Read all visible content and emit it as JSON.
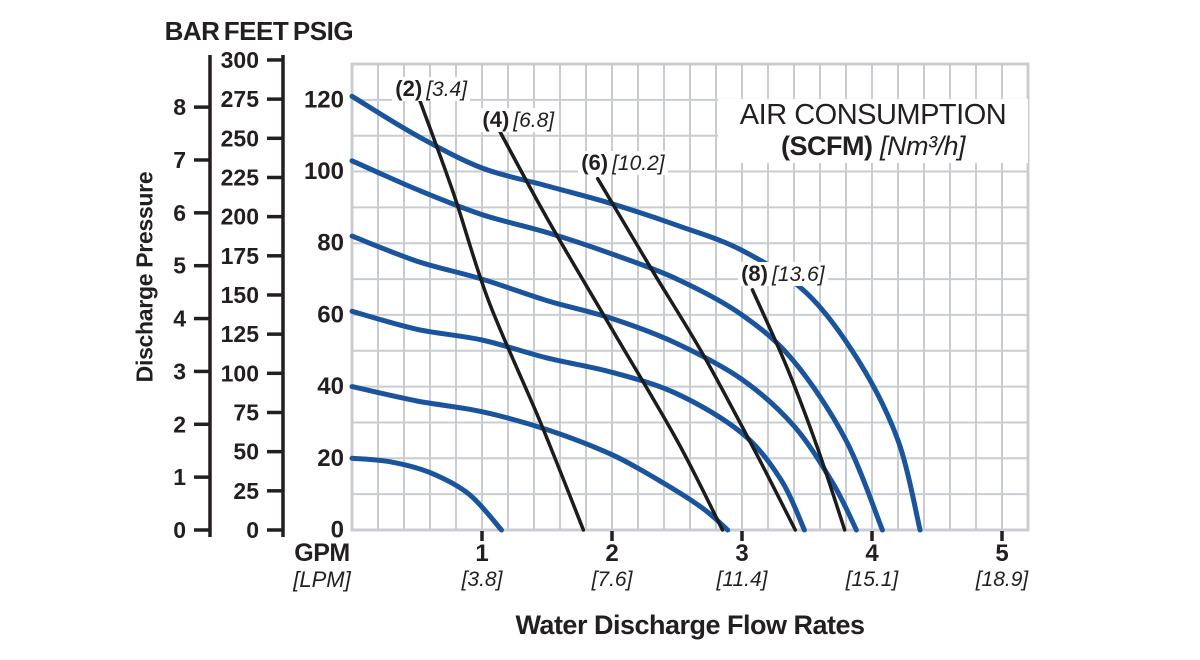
{
  "chart_data": {
    "type": "line",
    "title": {
      "line1": "AIR CONSUMPTION",
      "line2_bold": "(SCFM)",
      "line2_italic": "[Nm³/h]"
    },
    "xlabel": "Water Discharge Flow Rates",
    "ylabel": "Discharge Pressure",
    "colors": {
      "pump_curve": "#1a549c",
      "air_curve": "#1c1c1c",
      "grid": "#c9cdd2",
      "axis": "#231f20"
    },
    "x_axis": {
      "unit_primary": "GPM",
      "unit_secondary": "[LPM]",
      "xlim": [
        0,
        5.2
      ],
      "ticks": [
        {
          "gpm": "1",
          "lpm": "[3.8]"
        },
        {
          "gpm": "2",
          "lpm": "[7.6]"
        },
        {
          "gpm": "3",
          "lpm": "[11.4]"
        },
        {
          "gpm": "4",
          "lpm": "[15.1]"
        },
        {
          "gpm": "5",
          "lpm": "[18.9]"
        }
      ]
    },
    "y_axes": [
      {
        "name": "BAR",
        "values": [
          8,
          7,
          6,
          5,
          4,
          3,
          2,
          1,
          0
        ]
      },
      {
        "name": "FEET",
        "values": [
          300,
          275,
          250,
          225,
          200,
          175,
          150,
          125,
          100,
          75,
          50,
          25,
          0
        ]
      },
      {
        "name": "PSIG",
        "values": [
          120,
          100,
          80,
          60,
          40,
          20,
          0
        ]
      }
    ],
    "ylim_psig": [
      0,
      130
    ],
    "grid": {
      "x_step_gpm": 0.2,
      "y_step_psig": 10
    },
    "pump_curves": {
      "series": [
        {
          "name": "pump-curve-1",
          "points": [
            [
              0,
              121
            ],
            [
              0.5,
              110
            ],
            [
              1,
              101
            ],
            [
              1.5,
              96
            ],
            [
              2,
              91
            ],
            [
              2.5,
              85
            ],
            [
              3,
              78
            ],
            [
              3.5,
              66
            ],
            [
              3.9,
              47
            ],
            [
              4.2,
              25
            ],
            [
              4.37,
              0
            ]
          ]
        },
        {
          "name": "pump-curve-2",
          "points": [
            [
              0,
              103
            ],
            [
              0.5,
              95
            ],
            [
              1,
              88
            ],
            [
              1.5,
              83
            ],
            [
              2,
              77
            ],
            [
              2.5,
              70
            ],
            [
              3,
              60
            ],
            [
              3.4,
              47
            ],
            [
              3.8,
              25
            ],
            [
              4.08,
              0
            ]
          ]
        },
        {
          "name": "pump-curve-3",
          "points": [
            [
              0,
              82
            ],
            [
              0.5,
              75
            ],
            [
              1,
              70
            ],
            [
              1.5,
              64
            ],
            [
              2,
              59
            ],
            [
              2.5,
              52
            ],
            [
              3,
              42
            ],
            [
              3.4,
              29
            ],
            [
              3.7,
              13
            ],
            [
              3.88,
              0
            ]
          ]
        },
        {
          "name": "pump-curve-4",
          "points": [
            [
              0,
              61
            ],
            [
              0.5,
              56
            ],
            [
              1,
              53
            ],
            [
              1.5,
              48
            ],
            [
              2,
              44
            ],
            [
              2.5,
              38
            ],
            [
              3,
              27
            ],
            [
              3.3,
              14
            ],
            [
              3.48,
              0
            ]
          ]
        },
        {
          "name": "pump-curve-5",
          "points": [
            [
              0,
              40
            ],
            [
              0.5,
              36
            ],
            [
              1,
              33
            ],
            [
              1.5,
              28
            ],
            [
              2,
              21
            ],
            [
              2.4,
              13
            ],
            [
              2.7,
              6
            ],
            [
              2.89,
              0
            ]
          ]
        },
        {
          "name": "pump-curve-6",
          "points": [
            [
              0,
              20
            ],
            [
              0.3,
              19
            ],
            [
              0.6,
              16
            ],
            [
              0.9,
              10
            ],
            [
              1.15,
              0
            ]
          ]
        }
      ]
    },
    "air_consumption_curves": {
      "series": [
        {
          "label_bold": "(2)",
          "label_italic": "[3.4]",
          "label_anchor": {
            "gpm": 0.31,
            "psig": 123
          },
          "points": [
            [
              0.52,
              120
            ],
            [
              0.78,
              94
            ],
            [
              1.05,
              64
            ],
            [
              1.45,
              30
            ],
            [
              1.78,
              0
            ]
          ]
        },
        {
          "label_bold": "(4)",
          "label_italic": "[6.8]",
          "label_anchor": {
            "gpm": 0.98,
            "psig": 114.5
          },
          "points": [
            [
              1.14,
              111
            ],
            [
              1.5,
              87
            ],
            [
              2.0,
              56
            ],
            [
              2.5,
              25
            ],
            [
              2.85,
              0
            ]
          ]
        },
        {
          "label_bold": "(6)",
          "label_italic": "[10.2]",
          "label_anchor": {
            "gpm": 1.74,
            "psig": 102.5
          },
          "points": [
            [
              1.89,
              98
            ],
            [
              2.3,
              73
            ],
            [
              2.7,
              49
            ],
            [
              3.1,
              22
            ],
            [
              3.41,
              0
            ]
          ]
        },
        {
          "label_bold": "(8)",
          "label_italic": "[13.6]",
          "label_anchor": {
            "gpm": 2.97,
            "psig": 71.5
          },
          "points": [
            [
              3.08,
              67
            ],
            [
              3.35,
              45
            ],
            [
              3.58,
              23
            ],
            [
              3.79,
              0
            ]
          ]
        }
      ]
    }
  }
}
